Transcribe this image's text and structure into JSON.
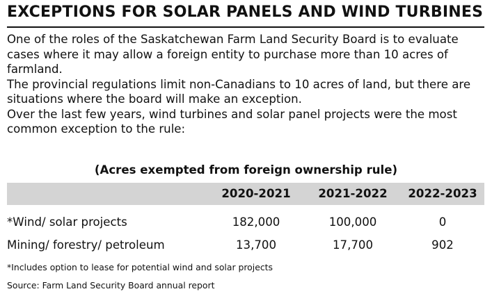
{
  "title": "EXCEPTIONS FOR SOLAR PANELS AND WIND TURBINES",
  "intro": {
    "paragraphs": [
      "One of the roles of the Saskatchewan Farm Land Security Board is to evaluate cases where it may allow a foreign entity to purchase more than 10 acres of farmland.",
      "The provincial regulations limit non-Canadians to 10 acres of land, but there are situations where the board will make an exception.",
      "Over the last few years, wind turbines and solar panel projects were the most common exception to the rule:"
    ]
  },
  "table": {
    "title": "(Acres exempted from  foreign ownership rule)",
    "columns": [
      "2020-2021",
      "2021-2022",
      "2022-2023"
    ],
    "rows": [
      {
        "label": "*Wind/ solar  projects",
        "values": [
          "182,000",
          "100,000",
          "0"
        ]
      },
      {
        "label": "Mining/ forestry/ petroleum",
        "values": [
          "13,700",
          "17,700",
          "902"
        ]
      }
    ]
  },
  "footnote": "*Includes option to lease for potential wind and solar projects",
  "source": "Source: Farm Land Security Board annual report",
  "colors": {
    "text": "#111111",
    "header_band": "#d4d4d4",
    "background": "#ffffff"
  }
}
